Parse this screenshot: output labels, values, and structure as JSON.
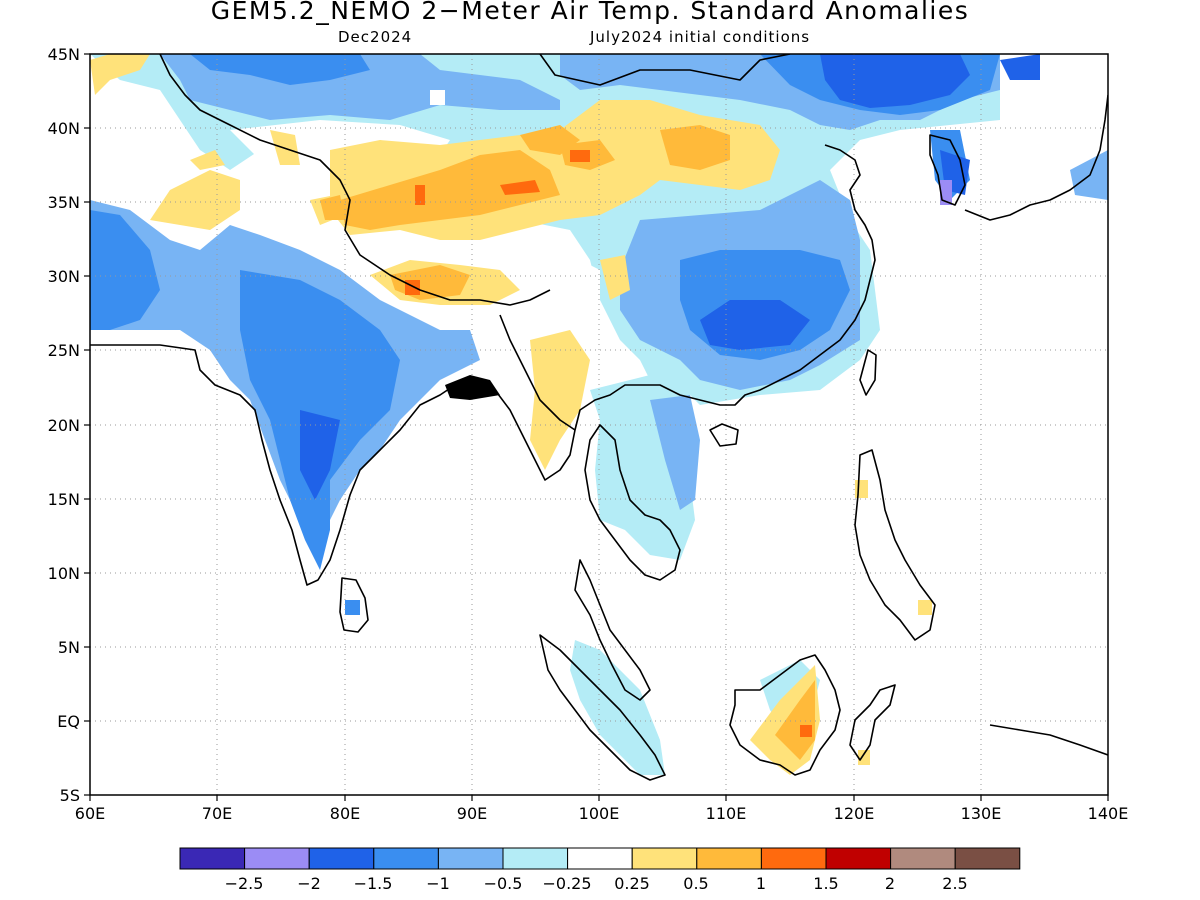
{
  "header": {
    "title": "GEM5.2_NEMO 2−Meter Air Temp. Standard Anomalies",
    "valid_month": "Dec2024",
    "init": "July2024 initial conditions"
  },
  "map": {
    "lon_range": [
      60,
      140
    ],
    "lat_range": [
      -5,
      45
    ],
    "lon_labels": [
      "60E",
      "70E",
      "80E",
      "90E",
      "100E",
      "110E",
      "120E",
      "130E",
      "140E"
    ],
    "lat_labels": [
      "5S",
      "EQ",
      "5N",
      "10N",
      "15N",
      "20N",
      "25N",
      "30N",
      "35N",
      "40N",
      "45N"
    ],
    "grid": "dotted",
    "coastline_color": "#000000"
  },
  "colorbar": {
    "colors": [
      "#3a28b5",
      "#9b8cf5",
      "#1f62e8",
      "#3a8ef0",
      "#78b4f4",
      "#b4ecf6",
      "#ffffff",
      "#ffe27a",
      "#ffba3a",
      "#ff6a0e",
      "#c00000",
      "#b08a7e",
      "#7a4f44"
    ],
    "labels": [
      "−2.5",
      "−2",
      "−1.5",
      "−1",
      "−0.5",
      "−0.25",
      "0.25",
      "0.5",
      "1",
      "1.5",
      "2",
      "2.5"
    ]
  },
  "anomaly_regions": [
    {
      "level": "-1.5",
      "color": "#1f62e8",
      "desc": "northeast China / Mongolia"
    },
    {
      "level": "-1",
      "color": "#3a8ef0",
      "desc": "central India"
    },
    {
      "level": "-1",
      "color": "#3a8ef0",
      "desc": "south China"
    },
    {
      "level": "-0.5",
      "color": "#78b4f4",
      "desc": "India, Pakistan, Iran, China"
    },
    {
      "level": "-0.25",
      "color": "#b4ecf6",
      "desc": "Indochina, Sumatra, Borneo"
    },
    {
      "level": "0.5",
      "color": "#ffe27a",
      "desc": "Tibet, Afghanistan, Myanmar"
    },
    {
      "level": "1",
      "color": "#ffba3a",
      "desc": "Tibetan Plateau, east Borneo"
    },
    {
      "level": "1.5",
      "color": "#ff6a0e",
      "desc": "Tibet cores, Nepal"
    }
  ]
}
